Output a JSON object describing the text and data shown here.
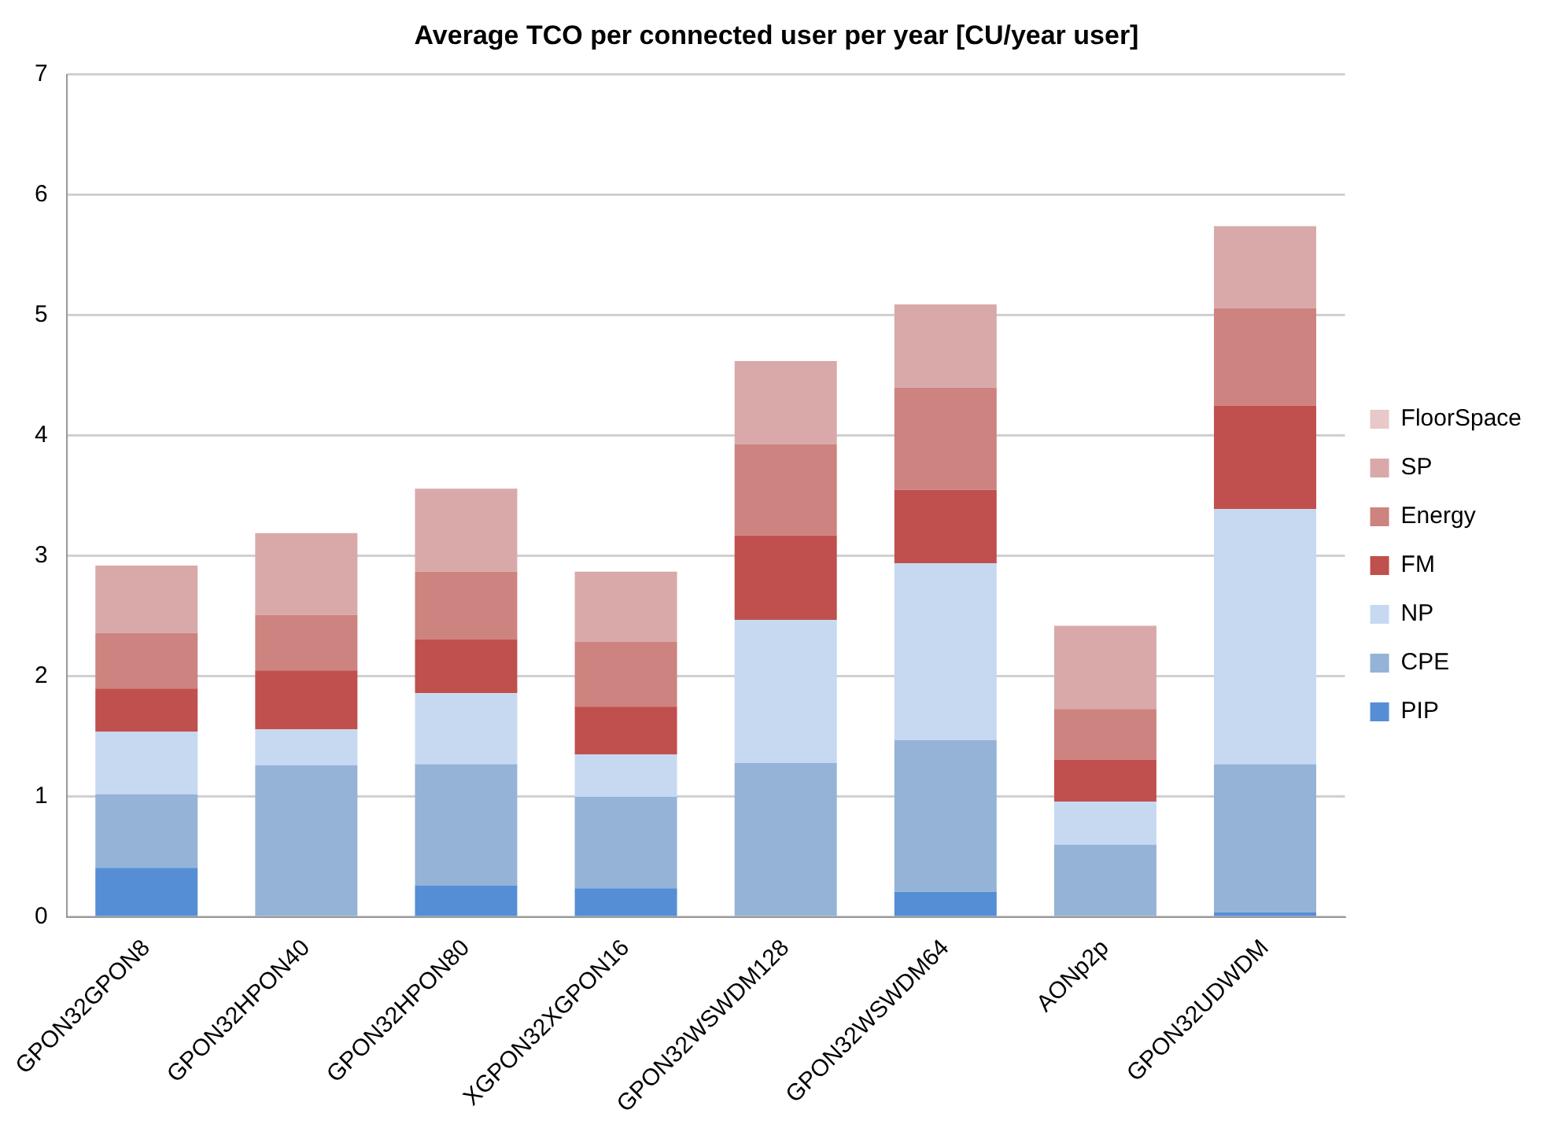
{
  "chart_data": {
    "type": "bar",
    "stacked": true,
    "title": "Average TCO per connected user per year [CU/year user]",
    "categories": [
      "GPON32GPON8",
      "GPON32HPON40",
      "GPON32HPON80",
      "XGPON32XGPON16",
      "GPON32WSWDM128",
      "GPON32WSWDM64",
      "AONp2p",
      "GPON32UDWDM"
    ],
    "series": [
      {
        "name": "PIP",
        "color": "#558ed5",
        "values": [
          0.41,
          0,
          0.26,
          0.24,
          0,
          0.21,
          0,
          0.04
        ]
      },
      {
        "name": "CPE",
        "color": "#95b3d7",
        "values": [
          0.61,
          1.26,
          1.01,
          0.76,
          1.28,
          1.26,
          0.6,
          1.23
        ]
      },
      {
        "name": "NP",
        "color": "#c6d9f1",
        "values": [
          0.52,
          0.3,
          0.59,
          0.35,
          1.19,
          1.47,
          0.36,
          2.12
        ]
      },
      {
        "name": "FM",
        "color": "#c0504d",
        "values": [
          0.36,
          0.49,
          0.45,
          0.4,
          0.7,
          0.61,
          0.35,
          0.86
        ]
      },
      {
        "name": "Energy",
        "color": "#cd837f",
        "values": [
          0.46,
          0.46,
          0.56,
          0.54,
          0.76,
          0.85,
          0.42,
          0.81
        ]
      },
      {
        "name": "SP",
        "color": "#d9a9a9",
        "values": [
          0.56,
          0.68,
          0.69,
          0.58,
          0.69,
          0.69,
          0.69,
          0.68
        ]
      },
      {
        "name": "FloorSpace",
        "color": "#e8c8c8",
        "values": [
          0,
          0,
          0,
          0,
          0,
          0,
          0,
          0
        ]
      }
    ],
    "ylim": [
      0,
      7
    ],
    "yticks": [
      0,
      1,
      2,
      3,
      4,
      5,
      6,
      7
    ],
    "grid": "y",
    "legend": "right"
  }
}
